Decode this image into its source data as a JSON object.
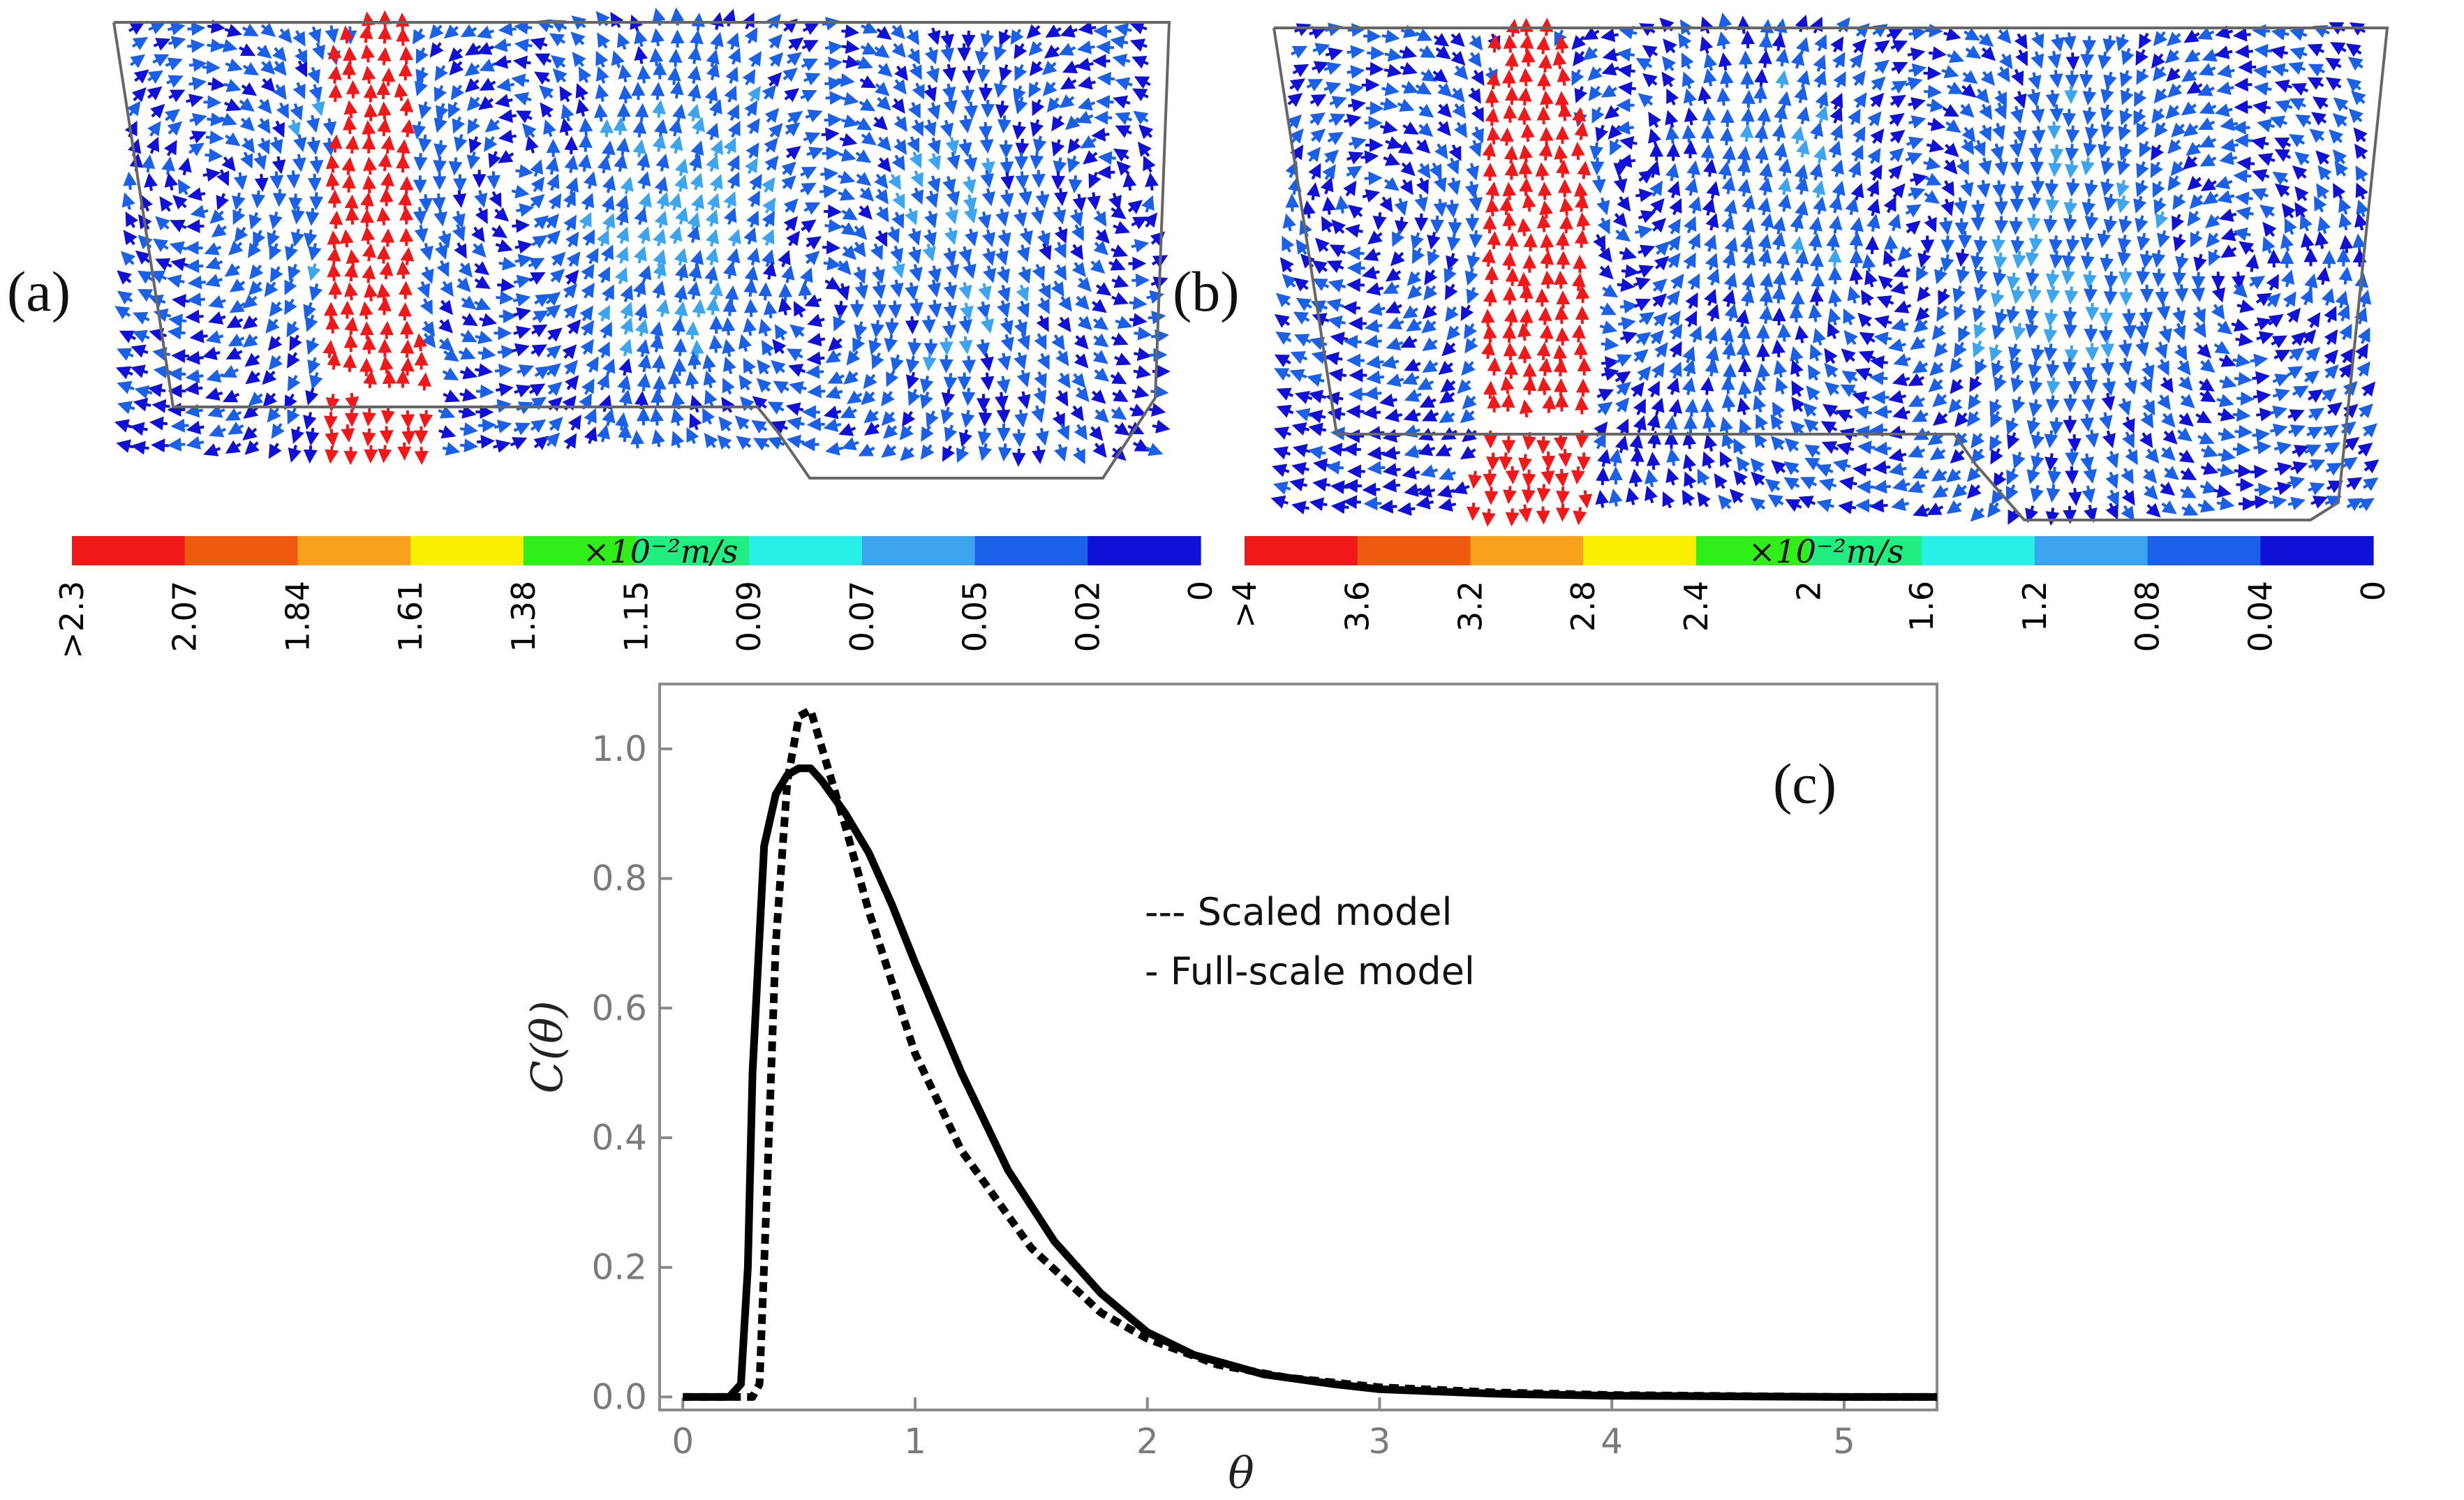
{
  "panels": {
    "a": {
      "label": "(a)",
      "colorbar": {
        "unit": "×10⁻²m/s",
        "ticks": [
          ">2.3",
          "2.07",
          "1.84",
          "1.61",
          "1.38",
          "1.15",
          "0.09",
          "0.07",
          "0.05",
          "0.02",
          "0"
        ],
        "colors": [
          "#f01818",
          "#f05a10",
          "#f9a01d",
          "#f8f000",
          "#30ee18",
          "#20ee80",
          "#28f0e8",
          "#3da4f0",
          "#1a60e8",
          "#1010d8"
        ]
      }
    },
    "b": {
      "label": "(b)",
      "colorbar": {
        "unit": "×10⁻²m/s",
        "ticks": [
          ">4",
          "3.6",
          "3.2",
          "2.8",
          "2.4",
          "2",
          "1.6",
          "1.2",
          "0.08",
          "0.04",
          "0"
        ],
        "colors": [
          "#f01818",
          "#f05a10",
          "#f9a01d",
          "#f8f000",
          "#30ee18",
          "#20ee80",
          "#28f0e8",
          "#3da4f0",
          "#1a60e8",
          "#1010d8"
        ]
      }
    }
  },
  "chart_data": {
    "type": "line",
    "panel_label": "(c)",
    "xlabel": "θ",
    "ylabel": "C(θ)",
    "xlim": [
      -0.1,
      5.4
    ],
    "ylim": [
      -0.02,
      1.1
    ],
    "xticks": [
      "0",
      "1",
      "2",
      "3",
      "4",
      "5"
    ],
    "yticks": [
      "0.0",
      "0.2",
      "0.4",
      "0.6",
      "0.8",
      "1.0"
    ],
    "series": [
      {
        "name": "Scaled model",
        "legend_text": "--- Scaled model",
        "style": "dashed",
        "x": [
          0.0,
          0.2,
          0.3,
          0.33,
          0.36,
          0.4,
          0.45,
          0.5,
          0.55,
          0.6,
          0.7,
          0.8,
          1.0,
          1.2,
          1.5,
          1.8,
          2.0,
          2.3,
          2.6,
          3.0,
          3.5,
          4.0,
          5.0,
          5.4
        ],
        "y": [
          0.0,
          0.0,
          0.0,
          0.02,
          0.3,
          0.7,
          0.95,
          1.05,
          1.06,
          1.0,
          0.88,
          0.75,
          0.53,
          0.38,
          0.23,
          0.13,
          0.09,
          0.05,
          0.03,
          0.015,
          0.007,
          0.003,
          0.0,
          0.0
        ]
      },
      {
        "name": "Full-scale model",
        "legend_text": "-   Full-scale model",
        "style": "solid",
        "x": [
          0.0,
          0.15,
          0.2,
          0.25,
          0.28,
          0.3,
          0.35,
          0.4,
          0.45,
          0.5,
          0.55,
          0.6,
          0.7,
          0.8,
          0.9,
          1.0,
          1.2,
          1.4,
          1.6,
          1.8,
          2.0,
          2.2,
          2.5,
          2.8,
          3.0,
          3.5,
          4.0,
          4.5,
          5.0,
          5.4
        ],
        "y": [
          0.0,
          0.0,
          0.0,
          0.02,
          0.2,
          0.5,
          0.85,
          0.93,
          0.96,
          0.97,
          0.97,
          0.95,
          0.9,
          0.84,
          0.76,
          0.67,
          0.5,
          0.35,
          0.24,
          0.16,
          0.1,
          0.065,
          0.035,
          0.02,
          0.012,
          0.005,
          0.002,
          0.001,
          0.0,
          0.0
        ]
      }
    ]
  }
}
